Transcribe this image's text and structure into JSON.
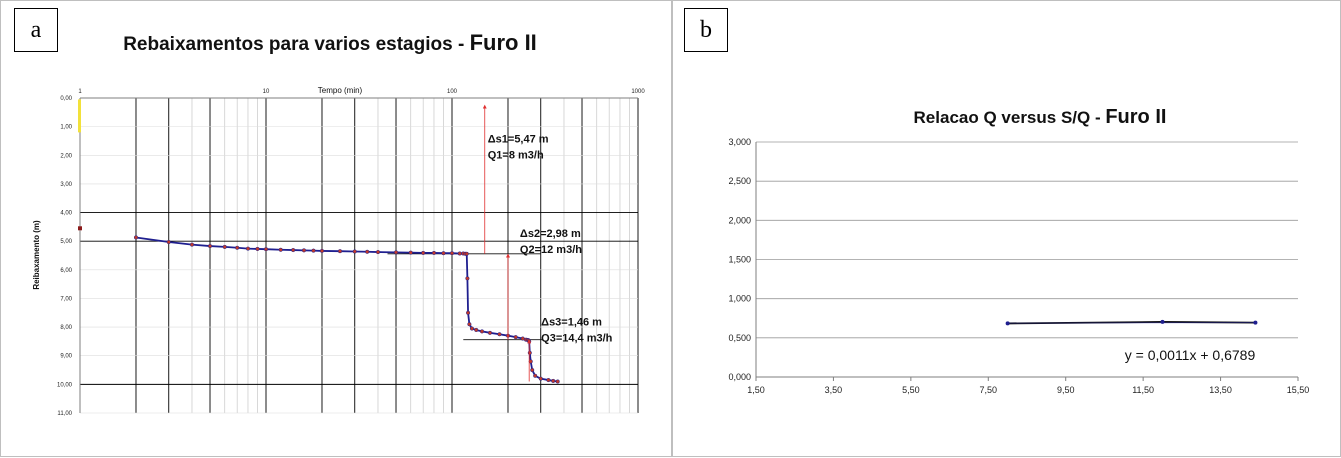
{
  "panels": {
    "a": "a",
    "b": "b"
  },
  "chart_data": [
    {
      "type": "line",
      "title": "Rebaixamentos para varios estagios - ",
      "title_suffix": "Furo II",
      "xlabel": "Tempo (min)",
      "ylabel": "Reibaxamento (m)",
      "x_scale": "log",
      "xlim": [
        1,
        1000
      ],
      "ylim": [
        0,
        11
      ],
      "y_inverted": true,
      "x_ticks": [
        "1",
        "10",
        "100",
        "1000"
      ],
      "x_tick_values": [
        1,
        10,
        100,
        1000
      ],
      "y_ticks": [
        "0,00",
        "1,00",
        "2,00",
        "3,00",
        "4,00",
        "5,00",
        "6,00",
        "7,00",
        "8,00",
        "9,00",
        "10,00",
        "11,00"
      ],
      "y_tick_values": [
        0,
        1,
        2,
        3,
        4,
        5,
        6,
        7,
        8,
        9,
        10,
        11
      ],
      "series": [
        {
          "x": [
            2,
            3,
            4,
            5,
            6,
            7,
            8,
            9,
            10,
            12,
            14,
            16,
            18,
            20,
            25,
            30,
            35,
            40,
            50,
            60,
            70,
            80,
            90,
            100,
            110,
            115,
            118,
            120,
            121,
            122,
            124,
            128,
            135,
            145,
            160,
            180,
            200,
            220,
            240,
            250,
            255,
            258,
            260,
            262,
            265,
            270,
            280,
            300,
            330,
            350,
            370
          ],
          "y": [
            4.87,
            5.03,
            5.12,
            5.17,
            5.2,
            5.23,
            5.26,
            5.27,
            5.28,
            5.3,
            5.31,
            5.32,
            5.33,
            5.34,
            5.35,
            5.36,
            5.37,
            5.38,
            5.39,
            5.4,
            5.41,
            5.41,
            5.42,
            5.42,
            5.43,
            5.43,
            5.44,
            5.44,
            6.3,
            7.5,
            7.9,
            8.05,
            8.1,
            8.15,
            8.2,
            8.25,
            8.3,
            8.35,
            8.4,
            8.44,
            8.45,
            8.46,
            8.5,
            8.9,
            9.2,
            9.5,
            9.7,
            9.8,
            9.85,
            9.88,
            9.9
          ]
        }
      ],
      "outlier_points": [
        {
          "x": 1,
          "y": 4.55
        }
      ],
      "horizontal_refs": [
        5.44,
        8.44
      ],
      "annotations": [
        {
          "text1": "Δs1=5,47 m",
          "text2": "Q1=8 m3/h",
          "arrow_x": 150,
          "arrow_y_from": 5.44,
          "arrow_y_to": 0.3
        },
        {
          "text1": "Δs2=2,98 m",
          "text2": "Q2=12 m3/h",
          "arrow_x": 200,
          "arrow_y_from": 8.44,
          "arrow_y_to": 5.5
        },
        {
          "text1": "Δs3=1,46 m",
          "text2": "Q3=14,4 m3/h",
          "arrow_x": 260,
          "arrow_y_from": 9.9,
          "arrow_y_to": 8.5
        }
      ]
    },
    {
      "type": "line",
      "title": "Relacao Q versus S/Q - ",
      "title_suffix": "Furo II",
      "xlim": [
        1.5,
        15.5
      ],
      "ylim": [
        0,
        3
      ],
      "x_ticks": [
        "1,50",
        "3,50",
        "5,50",
        "7,50",
        "9,50",
        "11,50",
        "13,50",
        "15,50"
      ],
      "x_tick_values": [
        1.5,
        3.5,
        5.5,
        7.5,
        9.5,
        11.5,
        13.5,
        15.5
      ],
      "y_ticks": [
        "0,000",
        "0,500",
        "1,000",
        "1,500",
        "2,000",
        "2,500",
        "3,000"
      ],
      "y_tick_values": [
        0,
        0.5,
        1,
        1.5,
        2,
        2.5,
        3
      ],
      "series": [
        {
          "x": [
            8,
            12,
            14.4
          ],
          "y": [
            0.684,
            0.703,
            0.694
          ]
        }
      ],
      "trendline": {
        "slope": 0.0011,
        "intercept": 0.6789,
        "x_range": [
          8,
          14.4
        ]
      },
      "equation": "y = 0,0011x + 0,6789"
    }
  ],
  "colors": {
    "line": "#1f1f8f",
    "marker": "#c0392b",
    "arrow": "#e03030",
    "axis": "#7f7f7f",
    "grid": "#000000",
    "minor_grid": "#c8c8c8"
  }
}
